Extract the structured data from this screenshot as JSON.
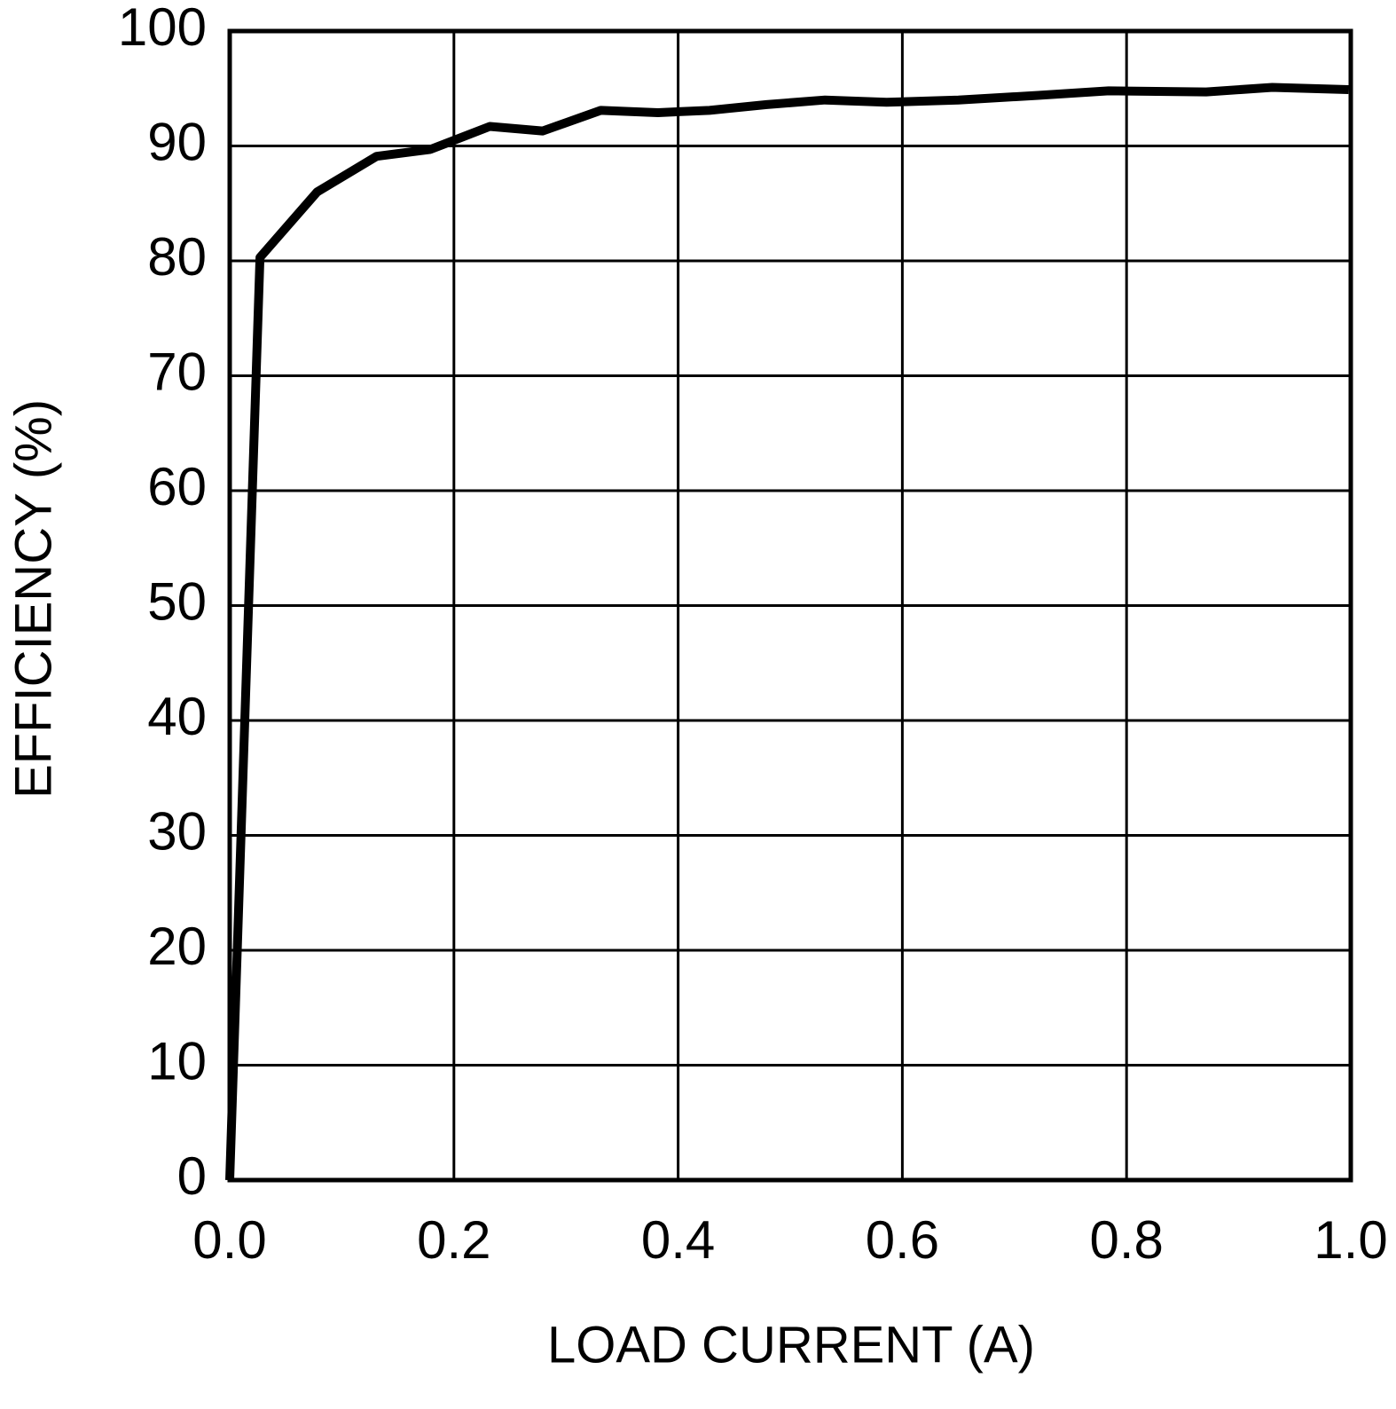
{
  "chart_data": {
    "type": "line",
    "x_label": "LOAD CURRENT (A)",
    "y_label": "EFFICIENCY (%)",
    "series": [
      {
        "color": "#000000",
        "x": [
          0,
          0.027,
          0.078,
          0.131,
          0.179,
          0.232,
          0.279,
          0.331,
          0.382,
          0.428,
          0.479,
          0.531,
          0.586,
          0.65,
          0.721,
          0.784,
          0.871,
          0.93,
          0.998
        ],
        "values": [
          0,
          80.3,
          86.0,
          89.1,
          89.7,
          91.7,
          91.3,
          93.1,
          92.9,
          93.1,
          93.6,
          94.0,
          93.8,
          94.0,
          94.4,
          94.8,
          94.7,
          95.1,
          94.9
        ]
      }
    ],
    "xlim": [
      0,
      1
    ],
    "ylim": [
      0,
      100
    ],
    "xticks": [
      {
        "value": 0,
        "label": "0.0"
      },
      0.2,
      0.4,
      0.6,
      0.8,
      {
        "value": 1,
        "label": "1.0"
      }
    ],
    "yticks": [
      0,
      10,
      20,
      30,
      40,
      50,
      60,
      70,
      80,
      90,
      100
    ],
    "grid": true
  }
}
